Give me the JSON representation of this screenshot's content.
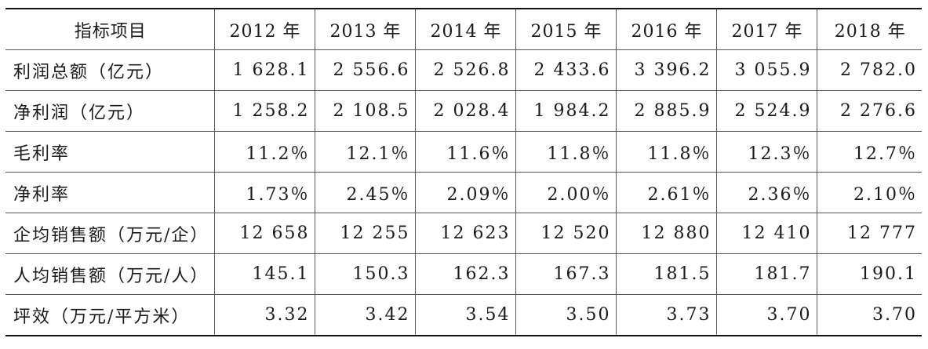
{
  "table": {
    "headers": [
      "指标项目",
      "2012 年",
      "2013 年",
      "2014 年",
      "2015 年",
      "2016 年",
      "2017 年",
      "2018 年"
    ],
    "rows": [
      {
        "label": "利润总额（亿元）",
        "values": [
          "1 628.1",
          "2 556.6",
          "2 526.8",
          "2 433.6",
          "3 396.2",
          "3 055.9",
          "2 782.0"
        ]
      },
      {
        "label": "净利润（亿元）",
        "values": [
          "1 258.2",
          "2 108.5",
          "2 028.4",
          "1 984.2",
          "2 885.9",
          "2 524.9",
          "2 276.6"
        ]
      },
      {
        "label": "毛利率",
        "values": [
          "11.2％",
          "12.1％",
          "11.6％",
          "11.8％",
          "11.8％",
          "12.3％",
          "12.7％"
        ]
      },
      {
        "label": "净利率",
        "values": [
          "1.73％",
          "2.45％",
          "2.09％",
          "2.00％",
          "2.61％",
          "2.36％",
          "2.10％"
        ]
      },
      {
        "label": "企均销售额（万元/企）",
        "values": [
          "12 658",
          "12 255",
          "12 623",
          "12 520",
          "12 880",
          "12 410",
          "12 777"
        ]
      },
      {
        "label": "人均销售额（万元/人）",
        "values": [
          "145.1",
          "150.3",
          "162.3",
          "167.3",
          "181.5",
          "181.7",
          "190.1"
        ]
      },
      {
        "label": "坪效（万元/平方米）",
        "values": [
          "3.32",
          "3.42",
          "3.54",
          "3.50",
          "3.73",
          "3.70",
          "3.70"
        ]
      }
    ]
  }
}
